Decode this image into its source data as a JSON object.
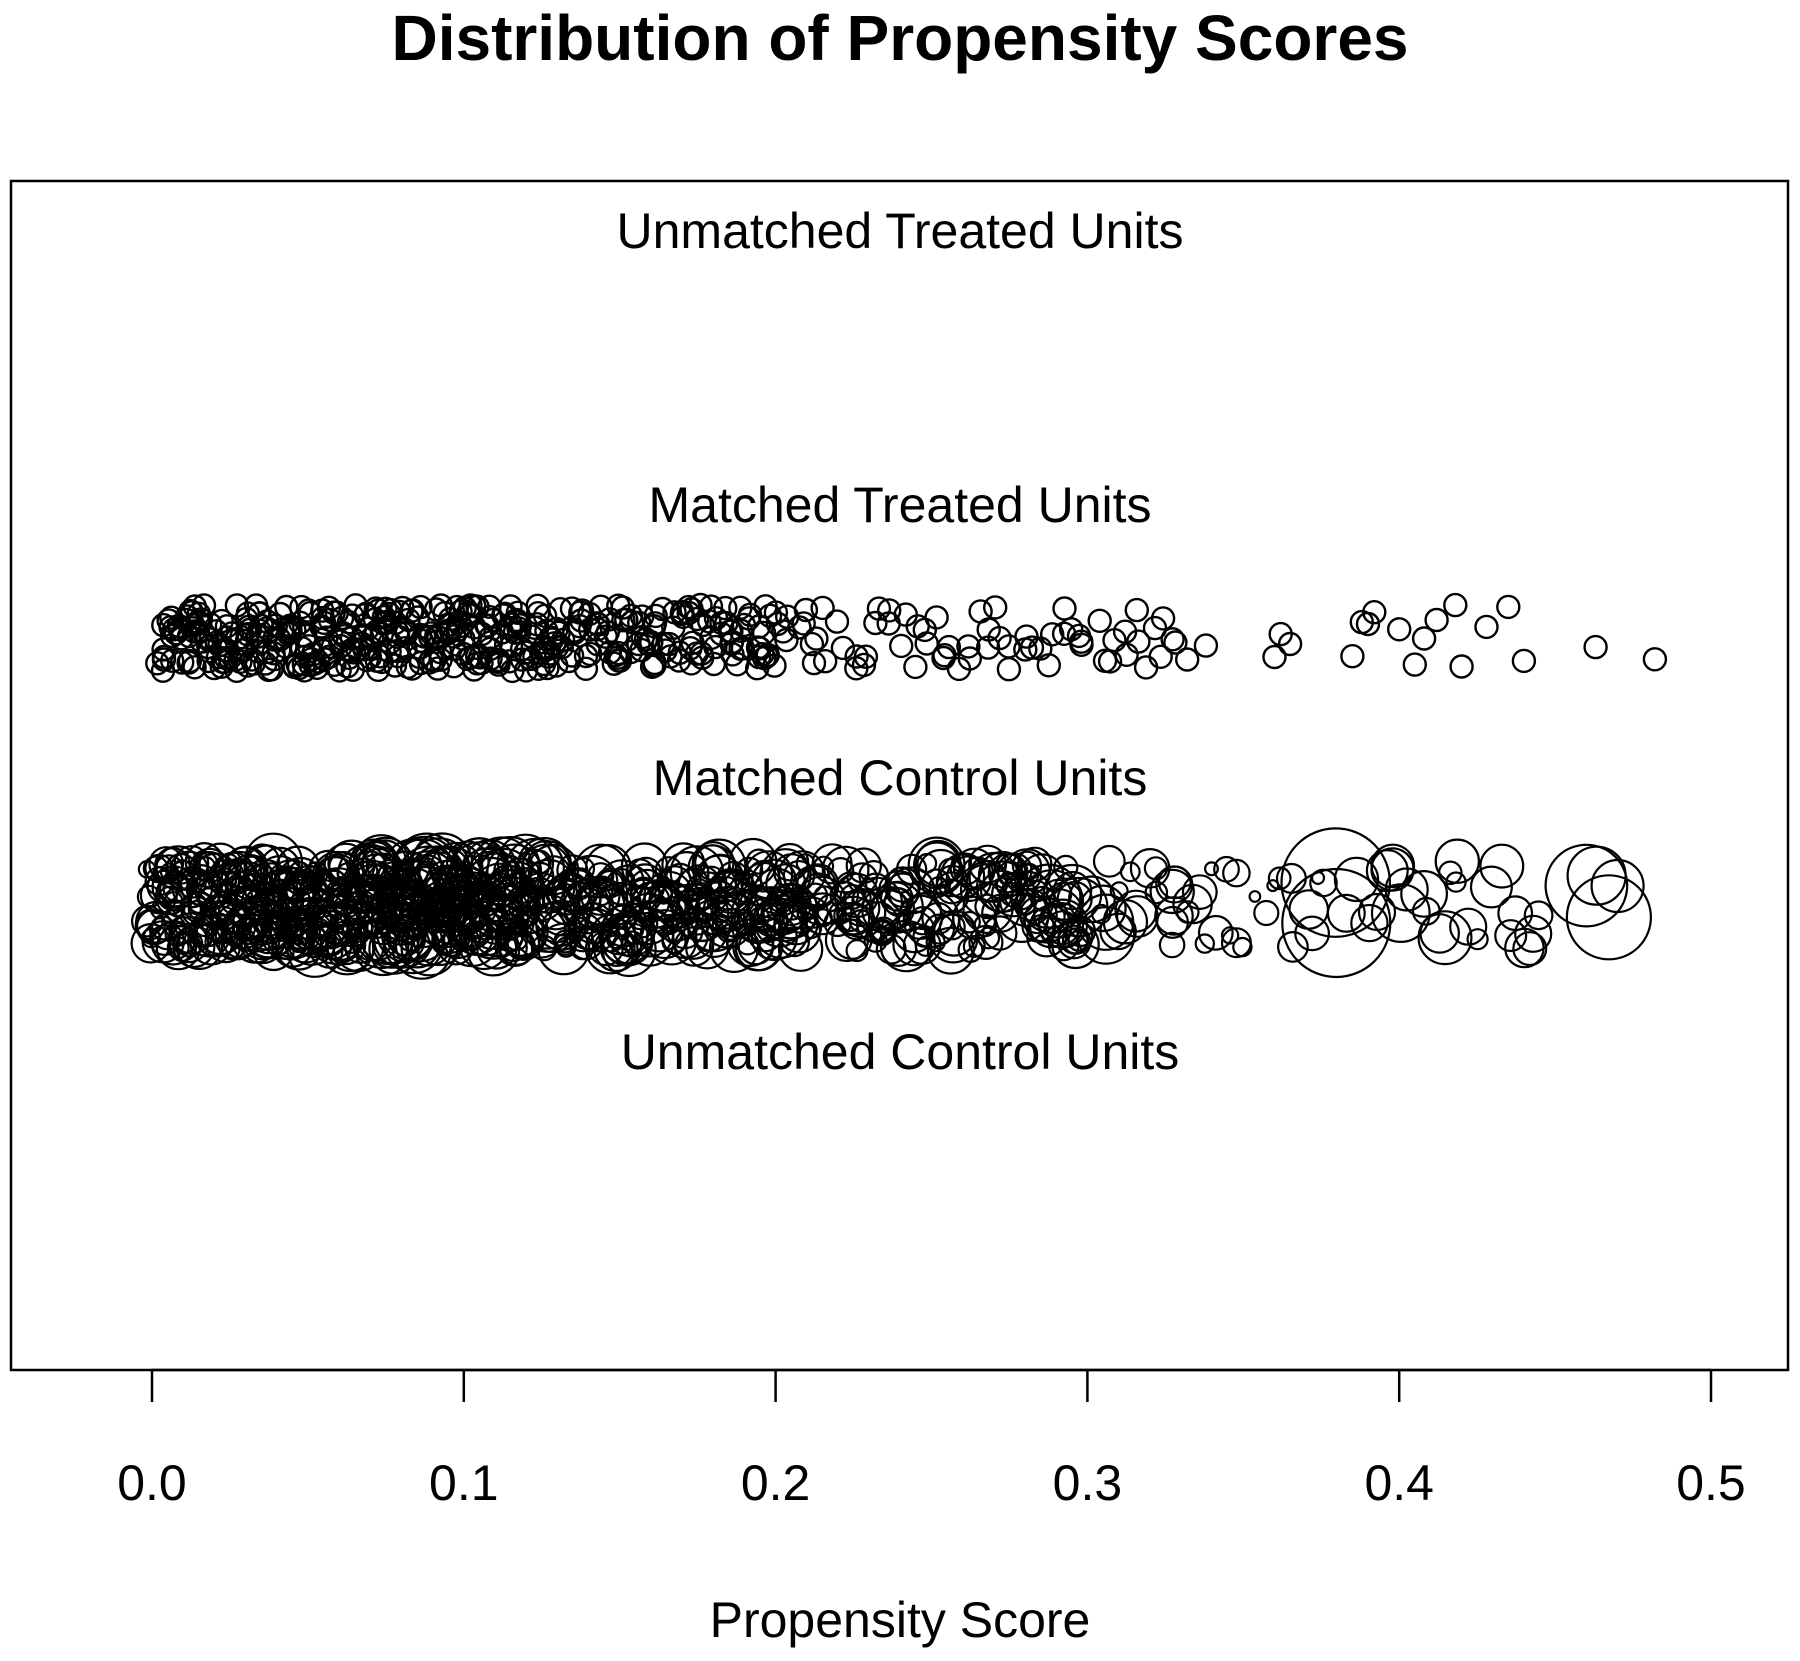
{
  "chart_data": {
    "type": "scatter",
    "title": "Distribution of Propensity Scores",
    "xlabel": "Propensity Score",
    "ylabel": "",
    "xlim": [
      -0.045,
      0.525
    ],
    "xticks": [
      0.0,
      0.1,
      0.2,
      0.3,
      0.4,
      0.5
    ],
    "xtick_labels": [
      "0.0",
      "0.1",
      "0.2",
      "0.3",
      "0.4",
      "0.5"
    ],
    "grid": false,
    "legend": "none",
    "groups": [
      {
        "label": "Unmatched Treated Units",
        "values": []
      },
      {
        "label": "Matched Treated Units",
        "values": [
          0.003,
          0.005,
          0.008,
          0.01,
          0.012,
          0.014,
          0.016,
          0.018,
          0.02,
          0.022,
          0.024,
          0.026,
          0.028,
          0.03,
          0.032,
          0.034,
          0.036,
          0.038,
          0.04,
          0.042,
          0.044,
          0.046,
          0.048,
          0.05,
          0.052,
          0.054,
          0.056,
          0.058,
          0.06,
          0.062,
          0.064,
          0.066,
          0.068,
          0.07,
          0.072,
          0.074,
          0.076,
          0.078,
          0.08,
          0.082,
          0.084,
          0.086,
          0.088,
          0.09,
          0.092,
          0.094,
          0.096,
          0.098,
          0.1,
          0.102,
          0.104,
          0.106,
          0.108,
          0.11,
          0.112,
          0.114,
          0.116,
          0.118,
          0.12,
          0.122,
          0.124,
          0.126,
          0.128,
          0.13,
          0.133,
          0.136,
          0.139,
          0.142,
          0.145,
          0.148,
          0.151,
          0.154,
          0.157,
          0.16,
          0.163,
          0.166,
          0.169,
          0.172,
          0.175,
          0.178,
          0.181,
          0.184,
          0.187,
          0.19,
          0.193,
          0.196,
          0.199,
          0.202,
          0.205,
          0.208,
          0.211,
          0.214,
          0.217,
          0.22,
          0.224,
          0.228,
          0.232,
          0.236,
          0.24,
          0.244,
          0.248,
          0.252,
          0.256,
          0.26,
          0.264,
          0.268,
          0.272,
          0.276,
          0.28,
          0.284,
          0.288,
          0.292,
          0.296,
          0.3,
          0.304,
          0.308,
          0.312,
          0.316,
          0.32,
          0.324,
          0.328,
          0.332,
          0.338,
          0.36,
          0.362,
          0.365,
          0.385,
          0.388,
          0.39,
          0.392,
          0.4,
          0.405,
          0.408,
          0.412,
          0.418,
          0.42,
          0.428,
          0.435,
          0.44,
          0.463,
          0.482
        ]
      },
      {
        "label": "Matched Control Units",
        "values": [
          0.0,
          0.002,
          0.004,
          0.006,
          0.008,
          0.01,
          0.012,
          0.014,
          0.016,
          0.018,
          0.02,
          0.022,
          0.024,
          0.026,
          0.028,
          0.03,
          0.032,
          0.034,
          0.036,
          0.038,
          0.04,
          0.042,
          0.044,
          0.046,
          0.048,
          0.05,
          0.052,
          0.054,
          0.056,
          0.058,
          0.06,
          0.062,
          0.064,
          0.066,
          0.068,
          0.07,
          0.072,
          0.074,
          0.076,
          0.078,
          0.08,
          0.082,
          0.084,
          0.086,
          0.088,
          0.09,
          0.092,
          0.094,
          0.096,
          0.098,
          0.1,
          0.102,
          0.104,
          0.106,
          0.108,
          0.11,
          0.112,
          0.114,
          0.116,
          0.118,
          0.12,
          0.123,
          0.126,
          0.129,
          0.132,
          0.135,
          0.138,
          0.141,
          0.144,
          0.147,
          0.15,
          0.153,
          0.156,
          0.159,
          0.162,
          0.165,
          0.168,
          0.171,
          0.174,
          0.177,
          0.18,
          0.183,
          0.186,
          0.189,
          0.192,
          0.195,
          0.198,
          0.201,
          0.204,
          0.207,
          0.21,
          0.214,
          0.218,
          0.222,
          0.226,
          0.23,
          0.234,
          0.238,
          0.242,
          0.246,
          0.25,
          0.254,
          0.258,
          0.262,
          0.266,
          0.27,
          0.274,
          0.278,
          0.282,
          0.286,
          0.29,
          0.294,
          0.298,
          0.302,
          0.306,
          0.31,
          0.315,
          0.32,
          0.325,
          0.33,
          0.335,
          0.34,
          0.345,
          0.35,
          0.355,
          0.36,
          0.365,
          0.37,
          0.375,
          0.38,
          0.385,
          0.39,
          0.395,
          0.4,
          0.405,
          0.41,
          0.415,
          0.42,
          0.425,
          0.43,
          0.435,
          0.44,
          0.445,
          0.463,
          0.468
        ],
        "weights": [
          1.6,
          1.4,
          1.7,
          1.5,
          1.8,
          1.6,
          1.7,
          1.9,
          1.6,
          1.8,
          2.0,
          1.7,
          2.2,
          1.8,
          1.9,
          2.1,
          1.8,
          2.0,
          2.3,
          1.9,
          2.4,
          2.0,
          2.1,
          2.2,
          1.9,
          2.3,
          2.0,
          2.1,
          2.4,
          2.0,
          2.2,
          2.3,
          2.0,
          2.1,
          2.5,
          2.2,
          2.3,
          2.6,
          2.4,
          2.5,
          2.7,
          2.5,
          2.6,
          2.8,
          2.4,
          2.6,
          2.5,
          2.3,
          2.4,
          2.6,
          2.5,
          2.3,
          2.4,
          2.2,
          2.6,
          2.3,
          2.5,
          2.4,
          2.2,
          2.3,
          2.1,
          2.4,
          2.2,
          2.0,
          2.3,
          2.1,
          2.2,
          1.9,
          2.1,
          2.0,
          1.8,
          2.2,
          1.9,
          2.0,
          2.1,
          1.8,
          2.0,
          1.9,
          2.2,
          1.8,
          2.0,
          2.1,
          1.9,
          2.0,
          2.2,
          1.9,
          1.8,
          2.0,
          2.2,
          1.9,
          1.8,
          2.0,
          1.7,
          1.9,
          1.8,
          2.0,
          1.7,
          1.9,
          2.1,
          1.8,
          2.3,
          1.9,
          2.0,
          1.8,
          1.7,
          2.1,
          1.8,
          1.9,
          2.2,
          1.8,
          2.6,
          2.0,
          2.4,
          1.9,
          2.3,
          1.8,
          1.7,
          1.6,
          1.8,
          1.5,
          1.6,
          1.4,
          1.2,
          1.1,
          1.0,
          0.9,
          1.2,
          1.6,
          1.1,
          4.5,
          1.8,
          1.5,
          1.7,
          2.4,
          1.9,
          1.6,
          2.2,
          1.8,
          1.5,
          1.7,
          1.4,
          1.6,
          1.5,
          3.4,
          3.5
        ]
      },
      {
        "label": "Unmatched Control Units",
        "values": []
      }
    ]
  }
}
